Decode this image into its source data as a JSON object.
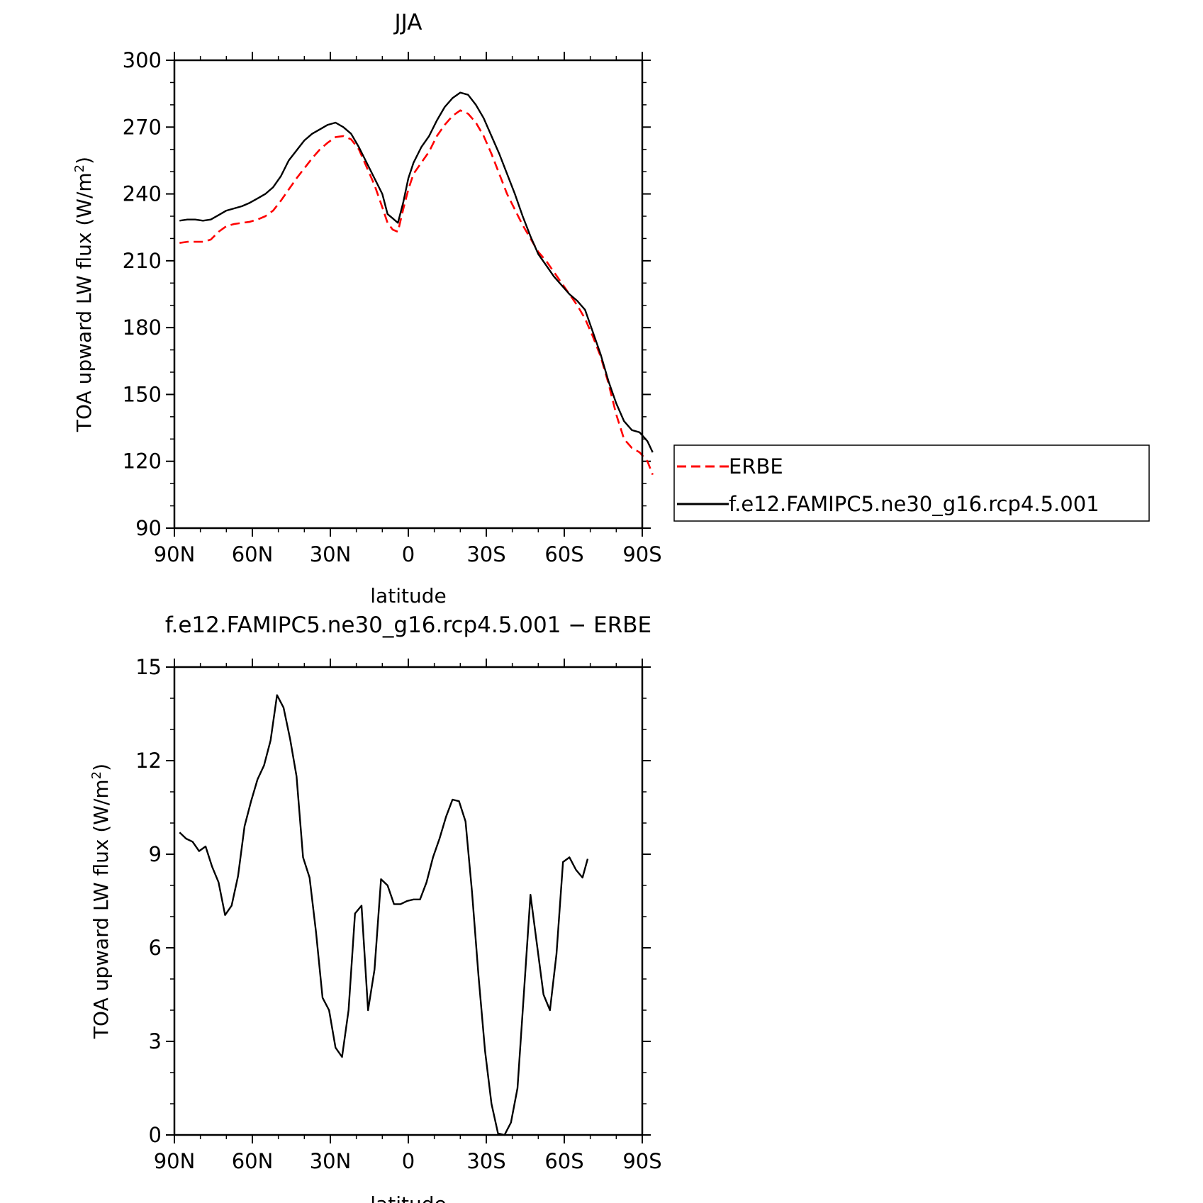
{
  "chart_data": [
    {
      "type": "line",
      "title": "JJA",
      "xlabel": "latitude",
      "ylabel": "TOA upward LW flux (W/m²)",
      "ylabel_main": "TOA upward LW flux (W/m",
      "ylabel_sup": "2",
      "ylabel_end": ")",
      "xlim": [
        90,
        -90
      ],
      "ylim": [
        90,
        300
      ],
      "xticks": [
        90,
        60,
        30,
        0,
        -30,
        -60,
        -90
      ],
      "xtick_labels": [
        "90N",
        "60N",
        "30N",
        "0",
        "30S",
        "60S",
        "90S"
      ],
      "yticks": [
        90,
        120,
        150,
        180,
        210,
        240,
        270,
        300
      ],
      "ytick_labels": [
        "90",
        "120",
        "150",
        "180",
        "210",
        "240",
        "270",
        "300"
      ],
      "legend": "right",
      "grid": false,
      "series": [
        {
          "name": "ERBE",
          "color": "#ff0000",
          "dash": true,
          "points": [
            [
              88,
              218
            ],
            [
              85,
              218.5
            ],
            [
              82,
              218.5
            ],
            [
              79,
              218.5
            ],
            [
              76,
              219.5
            ],
            [
              73,
              223
            ],
            [
              70,
              225.5
            ],
            [
              67,
              226.5
            ],
            [
              64,
              227
            ],
            [
              61,
              227.5
            ],
            [
              58,
              228.5
            ],
            [
              55,
              230
            ],
            [
              52,
              232.5
            ],
            [
              49,
              237
            ],
            [
              46,
              242
            ],
            [
              43,
              247
            ],
            [
              40,
              251.5
            ],
            [
              37,
              256
            ],
            [
              34,
              260
            ],
            [
              31,
              263
            ],
            [
              28,
              265.5
            ],
            [
              25,
              266
            ],
            [
              22,
              264.5
            ],
            [
              19,
              260
            ],
            [
              16,
              252
            ],
            [
              13,
              244
            ],
            [
              10,
              234
            ],
            [
              8,
              227
            ],
            [
              6,
              224
            ],
            [
              4,
              223
            ],
            [
              2,
              233
            ],
            [
              0,
              242
            ],
            [
              -2,
              249
            ],
            [
              -5,
              254
            ],
            [
              -8,
              259
            ],
            [
              -11,
              266
            ],
            [
              -14,
              271
            ],
            [
              -17,
              275
            ],
            [
              -20,
              277.5
            ],
            [
              -23,
              276
            ],
            [
              -26,
              272
            ],
            [
              -29,
              266
            ],
            [
              -32,
              258
            ],
            [
              -35,
              249
            ],
            [
              -38,
              240
            ],
            [
              -41,
              233
            ],
            [
              -44,
              226
            ],
            [
              -47,
              220
            ],
            [
              -50,
              214
            ],
            [
              -53,
              210
            ],
            [
              -56,
              205
            ],
            [
              -59,
              200
            ],
            [
              -62,
              195
            ],
            [
              -65,
              190
            ],
            [
              -68,
              184
            ],
            [
              -71,
              176
            ],
            [
              -74,
              167
            ],
            [
              -77,
              155
            ],
            [
              -80,
              141
            ],
            [
              -83,
              130
            ],
            [
              -86,
              126
            ],
            [
              -89,
              124
            ],
            [
              -92,
              120
            ],
            [
              -94,
              114
            ]
          ]
        },
        {
          "name": "f.e12.FAMIPC5.ne30_g16.rcp4.5.001",
          "color": "#000000",
          "dash": false,
          "points": [
            [
              88,
              228
            ],
            [
              85,
              228.5
            ],
            [
              82,
              228.5
            ],
            [
              79,
              228
            ],
            [
              76,
              228.5
            ],
            [
              73,
              230.5
            ],
            [
              70,
              232.5
            ],
            [
              67,
              233.5
            ],
            [
              64,
              234.5
            ],
            [
              61,
              236
            ],
            [
              58,
              238
            ],
            [
              55,
              240
            ],
            [
              52,
              243
            ],
            [
              49,
              248
            ],
            [
              46,
              255
            ],
            [
              43,
              259.5
            ],
            [
              40,
              264
            ],
            [
              37,
              267
            ],
            [
              34,
              269
            ],
            [
              31,
              271
            ],
            [
              28,
              272
            ],
            [
              25,
              270
            ],
            [
              22,
              267
            ],
            [
              19,
              261
            ],
            [
              16,
              254
            ],
            [
              13,
              247
            ],
            [
              10,
              240
            ],
            [
              8,
              231
            ],
            [
              6,
              229
            ],
            [
              4,
              227
            ],
            [
              2,
              236
            ],
            [
              0,
              247
            ],
            [
              -2,
              254
            ],
            [
              -5,
              261
            ],
            [
              -8,
              266
            ],
            [
              -11,
              273
            ],
            [
              -14,
              279
            ],
            [
              -17,
              283
            ],
            [
              -20,
              285.5
            ],
            [
              -23,
              284.5
            ],
            [
              -26,
              280
            ],
            [
              -29,
              274
            ],
            [
              -32,
              266
            ],
            [
              -35,
              258
            ],
            [
              -38,
              249
            ],
            [
              -41,
              240
            ],
            [
              -44,
              230
            ],
            [
              -47,
              221
            ],
            [
              -50,
              213
            ],
            [
              -53,
              208
            ],
            [
              -56,
              203
            ],
            [
              -59,
              199
            ],
            [
              -62,
              195
            ],
            [
              -65,
              192
            ],
            [
              -68,
              188
            ],
            [
              -71,
              178
            ],
            [
              -74,
              168
            ],
            [
              -77,
              156
            ],
            [
              -80,
              146
            ],
            [
              -83,
              138
            ],
            [
              -86,
              134
            ],
            [
              -89,
              133
            ],
            [
              -92,
              129
            ],
            [
              -94,
              124
            ]
          ]
        }
      ]
    },
    {
      "type": "line",
      "title": "f.e12.FAMIPC5.ne30_g16.rcp4.5.001 − ERBE",
      "xlabel": "latitude",
      "ylabel": "TOA upward LW flux (W/m²)",
      "ylabel_main": "TOA upward LW flux (W/m",
      "ylabel_sup": "2",
      "ylabel_end": ")",
      "xlim": [
        90,
        -90
      ],
      "ylim": [
        0,
        15
      ],
      "xticks": [
        90,
        60,
        30,
        0,
        -30,
        -60,
        -90
      ],
      "xtick_labels": [
        "90N",
        "60N",
        "30N",
        "0",
        "30S",
        "60S",
        "90S"
      ],
      "yticks": [
        0,
        3,
        6,
        9,
        12,
        15
      ],
      "ytick_labels": [
        "0",
        "3",
        "6",
        "9",
        "12",
        "15"
      ],
      "grid": false,
      "series": [
        {
          "name": "",
          "color": "#000000",
          "dash": false,
          "points": [
            [
              88,
              9.7
            ],
            [
              85.5,
              9.5
            ],
            [
              83,
              9.4
            ],
            [
              80.5,
              9.1
            ],
            [
              78,
              9.25
            ],
            [
              75.5,
              8.6
            ],
            [
              73,
              8.1
            ],
            [
              70.5,
              7.05
            ],
            [
              68,
              7.35
            ],
            [
              65.5,
              8.3
            ],
            [
              63,
              9.9
            ],
            [
              60.5,
              10.7
            ],
            [
              58,
              11.4
            ],
            [
              55.5,
              11.85
            ],
            [
              53,
              12.65
            ],
            [
              50.5,
              14.1
            ],
            [
              48,
              13.7
            ],
            [
              45.5,
              12.7
            ],
            [
              43,
              11.5
            ],
            [
              40.5,
              8.9
            ],
            [
              38,
              8.25
            ],
            [
              35.5,
              6.5
            ],
            [
              33,
              4.4
            ],
            [
              30.5,
              4.0
            ],
            [
              28,
              2.8
            ],
            [
              25.5,
              2.5
            ],
            [
              23,
              4.0
            ],
            [
              20.5,
              7.1
            ],
            [
              18,
              7.35
            ],
            [
              15.5,
              4.0
            ],
            [
              13,
              5.3
            ],
            [
              10.5,
              8.2
            ],
            [
              8,
              8.0
            ],
            [
              5.5,
              7.4
            ],
            [
              3,
              7.4
            ],
            [
              0.5,
              7.5
            ],
            [
              -2,
              7.55
            ],
            [
              -4.5,
              7.55
            ],
            [
              -7,
              8.1
            ],
            [
              -9.5,
              8.9
            ],
            [
              -12,
              9.5
            ],
            [
              -14.5,
              10.2
            ],
            [
              -17,
              10.75
            ],
            [
              -19.5,
              10.7
            ],
            [
              -22,
              10.05
            ],
            [
              -24.5,
              7.8
            ],
            [
              -27,
              5.1
            ],
            [
              -29.5,
              2.7
            ],
            [
              -32,
              1.0
            ],
            [
              -34.5,
              0.05
            ],
            [
              -37,
              0.0
            ],
            [
              -39.5,
              0.4
            ],
            [
              -42,
              1.5
            ],
            [
              -44.5,
              4.6
            ],
            [
              -47,
              7.7
            ],
            [
              -49.5,
              6.1
            ],
            [
              -52,
              4.5
            ],
            [
              -54.5,
              4.0
            ],
            [
              -57,
              5.8
            ],
            [
              -59.5,
              8.75
            ],
            [
              -62,
              8.9
            ],
            [
              -64.5,
              8.5
            ],
            [
              -67,
              8.25
            ],
            [
              -69,
              8.85
            ]
          ]
        }
      ]
    }
  ]
}
